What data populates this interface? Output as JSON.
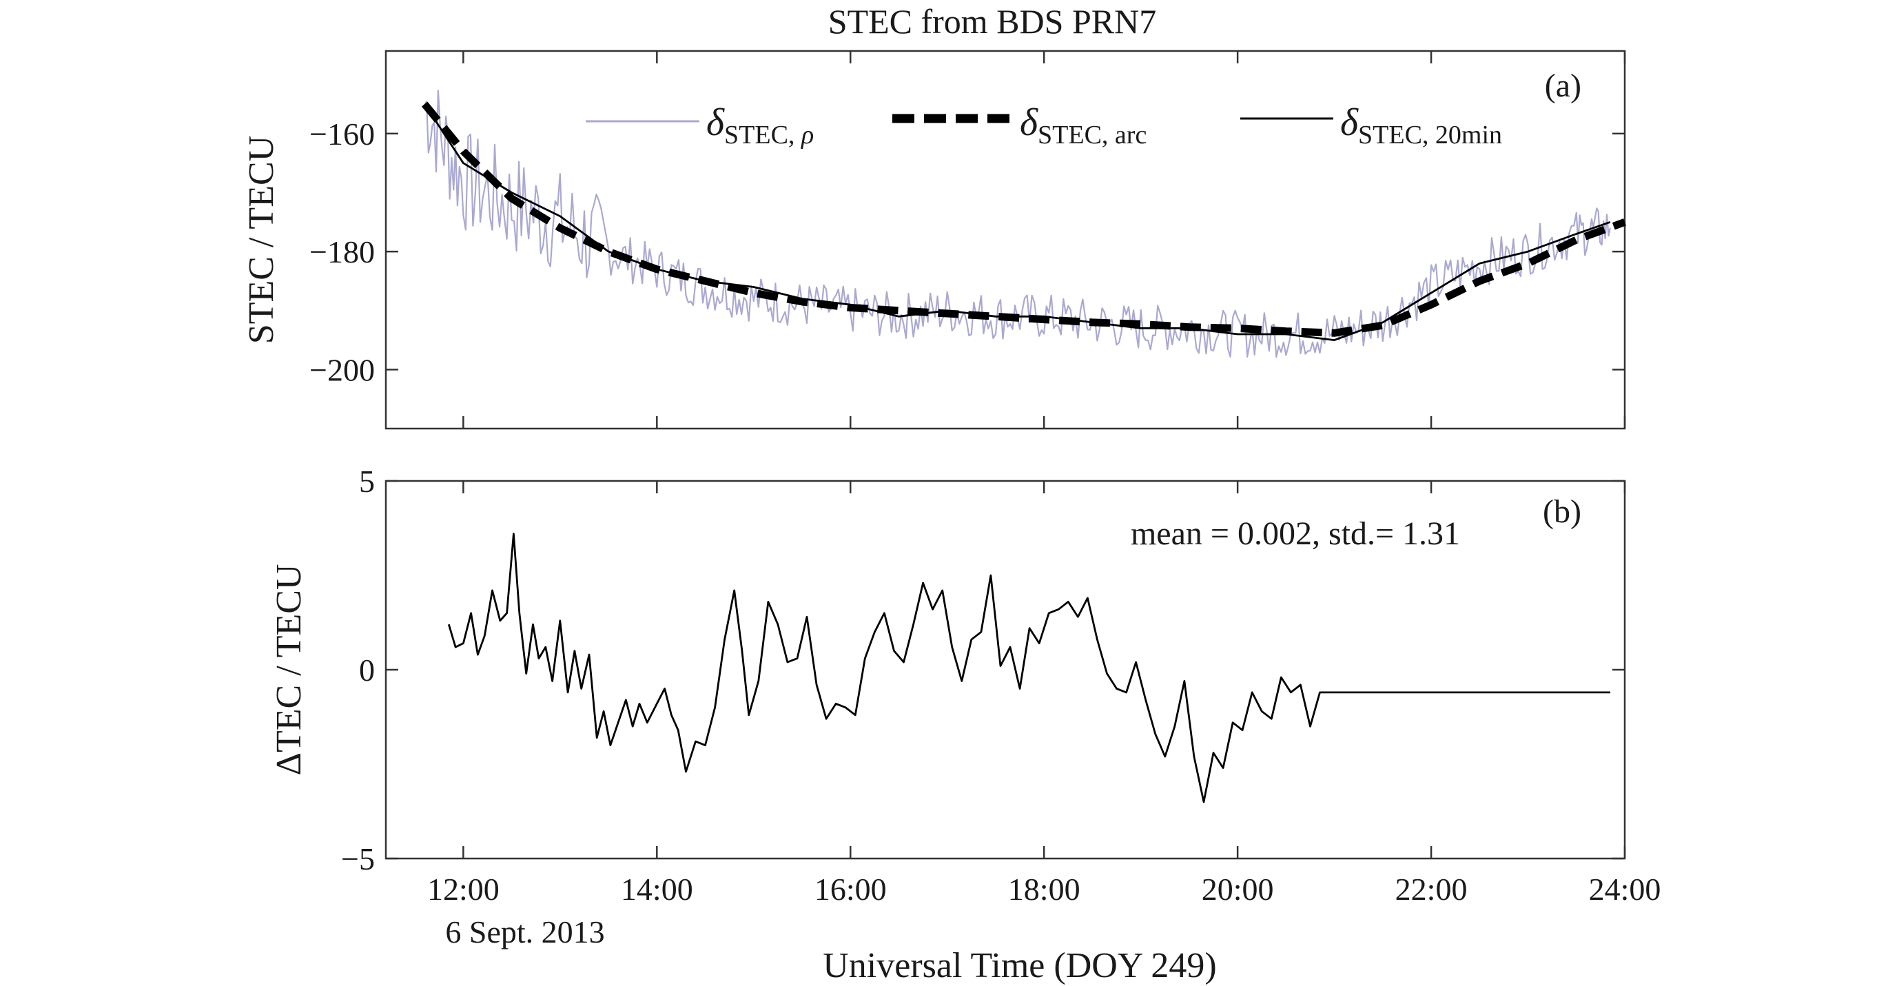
{
  "chart_data": [
    {
      "type": "line",
      "title": "STEC from BDS PRN7",
      "panel_label": "(a)",
      "xlabel": "",
      "ylabel": "STEC / TECU",
      "xlim": [
        11.2,
        24.0
      ],
      "ylim": [
        -210,
        -146
      ],
      "x_ticks": [
        12,
        14,
        16,
        18,
        20,
        22,
        24
      ],
      "y_ticks": [
        -160,
        -180,
        -200
      ],
      "y_tick_labels": [
        "−160",
        "−180",
        "−200"
      ],
      "legend_position": "top",
      "legend": [
        {
          "symbol": "δ",
          "sub": "STEC, ",
          "sub_italic": "ρ",
          "color": "#a9a9d2"
        },
        {
          "symbol": "δ",
          "sub": "STEC, arc",
          "sub_italic": "",
          "color": "#000000"
        },
        {
          "symbol": "δ",
          "sub": "STEC, 20min",
          "sub_italic": "",
          "color": "#000000"
        }
      ],
      "series": [
        {
          "style": "noisy",
          "color": "#a9a9d2",
          "x": [
            11.6,
            12.0,
            12.5,
            13.0,
            13.5,
            14.0,
            14.5,
            15.0,
            15.5,
            16.0,
            16.5,
            17.0,
            17.5,
            18.0,
            18.5,
            19.0,
            19.5,
            20.0,
            20.5,
            21.0,
            21.5,
            22.0,
            22.5,
            23.0,
            23.5,
            23.85
          ],
          "y": [
            -155,
            -168,
            -172,
            -175,
            -180,
            -183,
            -186,
            -188,
            -189,
            -190,
            -191,
            -190,
            -191,
            -191,
            -192,
            -193,
            -193,
            -194,
            -194,
            -194,
            -192,
            -186,
            -182,
            -180,
            -177,
            -176
          ]
        },
        {
          "style": "dashed",
          "color": "#000000",
          "x": [
            11.6,
            12.0,
            12.5,
            13.0,
            13.5,
            14.0,
            14.5,
            15.0,
            15.5,
            16.0,
            16.5,
            17.0,
            17.5,
            18.0,
            18.5,
            19.0,
            19.5,
            20.0,
            20.5,
            21.0,
            21.5,
            22.0,
            22.5,
            23.0,
            23.5,
            24.0
          ],
          "y": [
            -155,
            -163,
            -171,
            -176,
            -180,
            -183,
            -185,
            -187,
            -188.5,
            -189.5,
            -190,
            -190.5,
            -191,
            -191.5,
            -192,
            -192.3,
            -192.8,
            -193,
            -193.5,
            -193.8,
            -192.5,
            -189,
            -185,
            -182,
            -178,
            -175
          ]
        },
        {
          "style": "solid",
          "color": "#000000",
          "x": [
            11.6,
            12.0,
            12.5,
            13.0,
            13.5,
            14.0,
            14.5,
            15.0,
            15.5,
            16.0,
            16.5,
            17.0,
            17.5,
            18.0,
            18.5,
            19.0,
            19.5,
            20.0,
            20.5,
            21.0,
            21.5,
            22.0,
            22.5,
            23.0,
            23.5,
            23.85
          ],
          "y": [
            -155,
            -165,
            -170,
            -174,
            -180,
            -183,
            -185,
            -186,
            -188,
            -189,
            -191,
            -190,
            -191,
            -191,
            -192,
            -193,
            -193,
            -194,
            -194,
            -195,
            -192,
            -187,
            -182,
            -180,
            -177,
            -175
          ]
        }
      ]
    },
    {
      "type": "line",
      "title": "",
      "panel_label": "(b)",
      "annotation": "mean = 0.002, std.= 1.31",
      "xlabel": "Universal Time (DOY 249)",
      "date_label": "6 Sept. 2013",
      "ylabel": "ΔTEC / TECU",
      "xlim": [
        11.2,
        24.0
      ],
      "ylim": [
        -5,
        5
      ],
      "x_ticks": [
        12,
        14,
        16,
        18,
        20,
        22,
        24
      ],
      "x_tick_labels": [
        "12:00",
        "14:00",
        "16:00",
        "18:00",
        "20:00",
        "22:00",
        "24:00"
      ],
      "y_ticks": [
        5,
        0,
        -5
      ],
      "y_tick_labels": [
        "5",
        "0",
        "−5"
      ],
      "series": [
        {
          "style": "solid",
          "color": "#000000",
          "x": [
            11.85,
            11.92,
            12.0,
            12.08,
            12.15,
            12.22,
            12.3,
            12.38,
            12.45,
            12.52,
            12.58,
            12.65,
            12.72,
            12.78,
            12.85,
            12.92,
            13.0,
            13.08,
            13.15,
            13.22,
            13.3,
            13.38,
            13.45,
            13.52,
            13.6,
            13.68,
            13.75,
            13.82,
            13.9,
            14.0,
            14.08,
            14.15,
            14.22,
            14.3,
            14.4,
            14.5,
            14.6,
            14.7,
            14.8,
            14.88,
            14.95,
            15.05,
            15.15,
            15.25,
            15.35,
            15.45,
            15.55,
            15.65,
            15.75,
            15.85,
            15.95,
            16.05,
            16.15,
            16.25,
            16.35,
            16.45,
            16.55,
            16.65,
            16.75,
            16.85,
            16.95,
            17.05,
            17.15,
            17.25,
            17.35,
            17.45,
            17.55,
            17.65,
            17.75,
            17.85,
            17.95,
            18.05,
            18.15,
            18.25,
            18.35,
            18.45,
            18.55,
            18.65,
            18.75,
            18.85,
            18.95,
            19.05,
            19.15,
            19.25,
            19.35,
            19.45,
            19.55,
            19.65,
            19.75,
            19.85,
            19.95,
            20.05,
            20.15,
            20.25,
            20.35,
            20.45,
            20.55,
            20.65,
            20.75,
            20.85,
            20.95,
            21.05,
            21.15,
            21.25,
            21.35,
            21.45,
            21.55,
            21.65,
            21.75,
            21.85,
            21.95,
            22.05,
            22.15,
            22.25,
            22.35,
            22.45,
            22.55,
            22.65,
            22.75,
            22.85,
            22.95,
            23.05,
            23.15,
            23.25,
            23.35,
            23.45,
            23.55,
            23.65,
            23.75,
            23.85
          ],
          "y": [
            1.2,
            0.6,
            0.7,
            1.5,
            0.4,
            0.9,
            2.1,
            1.3,
            1.5,
            3.6,
            1.5,
            -0.1,
            1.2,
            0.3,
            0.6,
            -0.3,
            1.3,
            -0.6,
            0.5,
            -0.5,
            0.4,
            -1.8,
            -1.1,
            -2.0,
            -1.4,
            -0.8,
            -1.5,
            -0.9,
            -1.4,
            -0.9,
            -0.5,
            -1.2,
            -1.6,
            -2.7,
            -1.9,
            -2.0,
            -1.0,
            0.8,
            2.1,
            0.5,
            -1.2,
            -0.3,
            1.8,
            1.2,
            0.2,
            0.3,
            1.4,
            -0.4,
            -1.3,
            -0.9,
            -1.0,
            -1.2,
            0.3,
            1.0,
            1.5,
            0.5,
            0.2,
            1.2,
            2.3,
            1.6,
            2.1,
            0.6,
            -0.3,
            0.8,
            1.0,
            2.5,
            0.1,
            0.6,
            -0.5,
            1.1,
            0.7,
            1.5,
            1.6,
            1.8,
            1.4,
            1.9,
            0.8,
            -0.1,
            -0.5,
            -0.6,
            0.2,
            -0.8,
            -1.7,
            -2.3,
            -1.5,
            -0.3,
            -2.3,
            -3.5,
            -2.2,
            -2.6,
            -1.4,
            -1.6,
            -0.6,
            -1.1,
            -1.3,
            -0.2,
            -0.6,
            -0.4,
            -1.5,
            -0.6,
            -0.6,
            -0.6,
            -0.6,
            -0.6,
            -0.6,
            -0.6,
            -0.6,
            -0.6,
            -0.6,
            -0.6,
            -0.6,
            -0.6,
            -0.6,
            -0.6,
            -0.6,
            -0.6,
            -0.6,
            -0.6,
            -0.6,
            -0.6,
            -0.6,
            -0.6,
            -0.6,
            -0.6,
            -0.6,
            -0.6,
            -0.6,
            -0.6,
            -0.6,
            -0.6
          ]
        }
      ]
    }
  ]
}
